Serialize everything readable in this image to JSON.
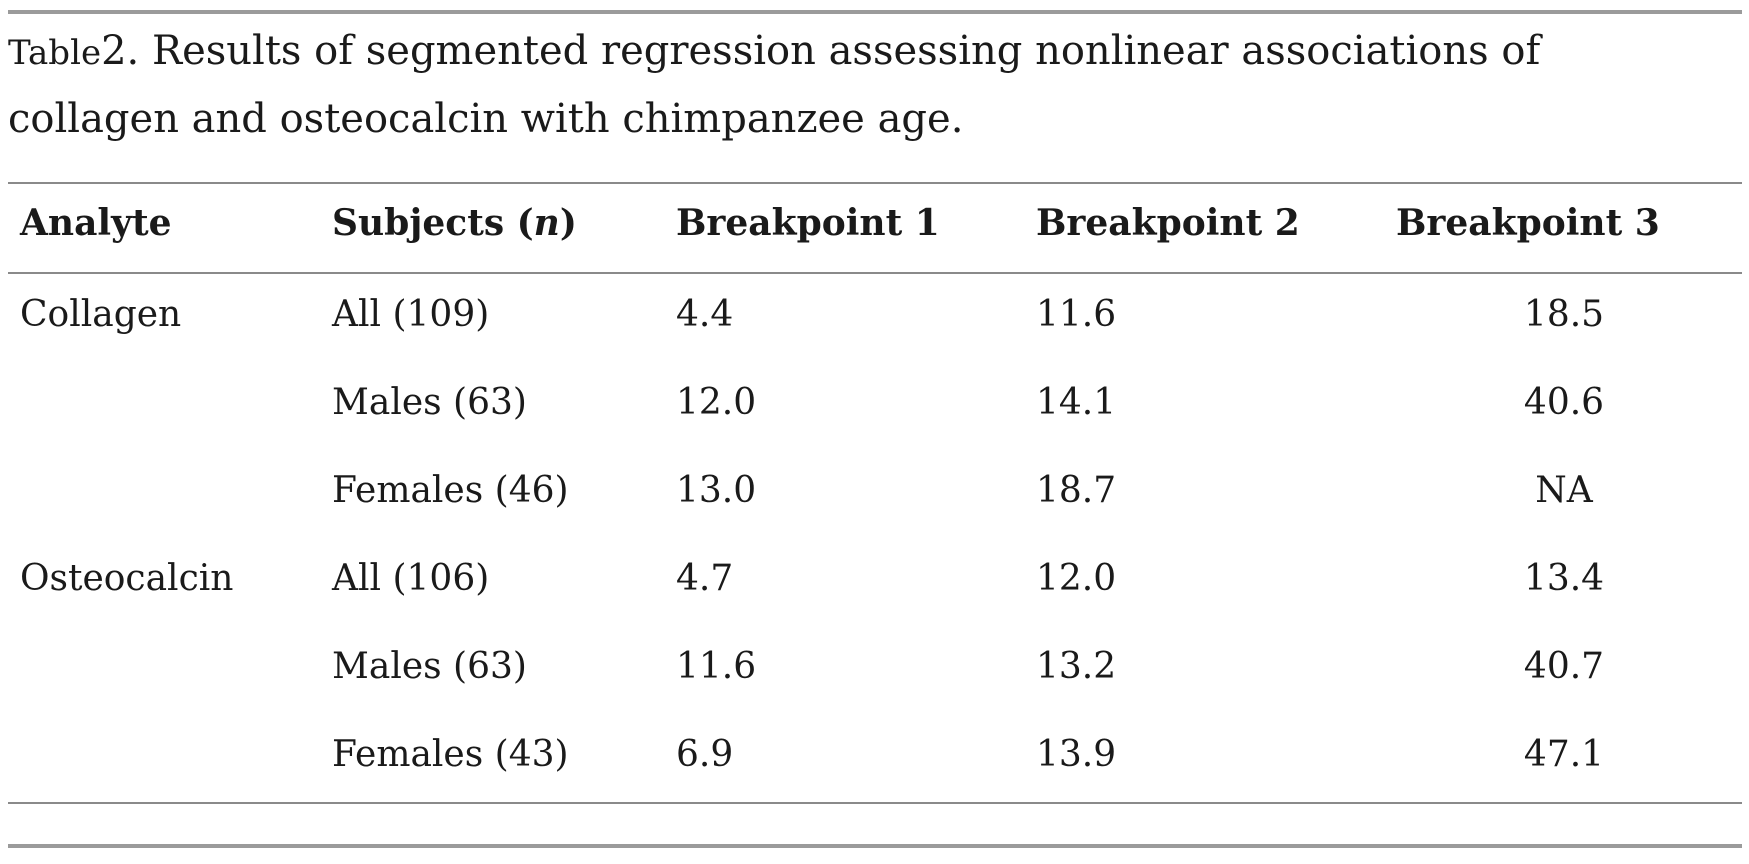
{
  "caption": {
    "label": "Table",
    "number": "2",
    "text": ". Results of segmented regression assessing nonlinear associations of collagen and osteocalcin with chimpanzee age."
  },
  "table": {
    "headers": {
      "analyte": "Analyte",
      "subjects_prefix": "Subjects (",
      "subjects_n": "n",
      "subjects_suffix": ")",
      "bp1": "Breakpoint 1",
      "bp2": "Breakpoint 2",
      "bp3": "Breakpoint 3"
    },
    "rows": [
      {
        "analyte": "Collagen",
        "subjects": "All (109)",
        "bp1": "4.4",
        "bp2": "11.6",
        "bp3": "18.5"
      },
      {
        "analyte": "",
        "subjects": "Males (63)",
        "bp1": "12.0",
        "bp2": "14.1",
        "bp3": "40.6"
      },
      {
        "analyte": "",
        "subjects": "Females (46)",
        "bp1": "13.0",
        "bp2": "18.7",
        "bp3": "NA"
      },
      {
        "analyte": "Osteocalcin",
        "subjects": "All (106)",
        "bp1": "4.7",
        "bp2": "12.0",
        "bp3": "13.4"
      },
      {
        "analyte": "",
        "subjects": "Males (63)",
        "bp1": "11.6",
        "bp2": "13.2",
        "bp3": "40.7"
      },
      {
        "analyte": "",
        "subjects": "Females (43)",
        "bp1": "6.9",
        "bp2": "13.9",
        "bp3": "47.1"
      }
    ]
  }
}
